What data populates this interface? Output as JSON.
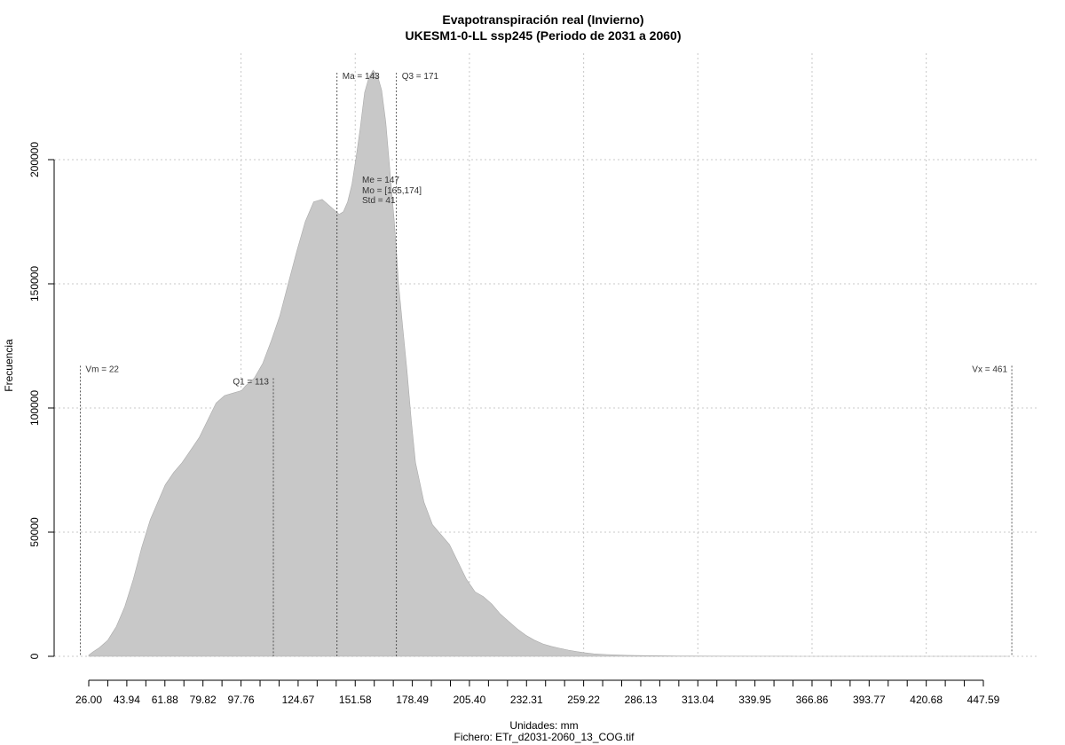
{
  "chart_data": {
    "type": "area",
    "title": "Evapotranspiración real (Invierno)",
    "subtitle": "UKESM1-0-LL ssp245 (Periodo de 2031 a 2060)",
    "xlabel": "Unidades: mm",
    "ylabel": "Frecuencia",
    "footer": "Fichero: ETr_d2031-2060_13_COG.tif",
    "fill_color": "#c8c8c8",
    "grid": true,
    "xlim": [
      20,
      468
    ],
    "ylim": [
      0,
      230000
    ],
    "x_ticks": [
      26.0,
      43.94,
      61.88,
      79.82,
      97.76,
      124.67,
      151.58,
      178.49,
      205.4,
      232.31,
      259.22,
      286.13,
      313.04,
      339.95,
      366.86,
      393.77,
      420.68,
      447.59
    ],
    "x_tick_labels": [
      "26.00",
      "43.94",
      "61.88",
      "79.82",
      "97.76",
      "124.67",
      "151.58",
      "178.49",
      "205.40",
      "232.31",
      "259.22",
      "286.13",
      "313.04",
      "339.95",
      "366.86",
      "393.77",
      "420.68",
      "447.59"
    ],
    "x_minor_ticks": [
      26.0,
      34.97,
      43.94,
      52.91,
      61.88,
      70.85,
      79.82,
      88.79,
      97.76,
      106.73,
      115.7,
      124.67,
      133.64,
      142.61,
      151.58,
      160.55,
      169.52,
      178.49,
      187.46,
      196.43,
      205.4,
      214.37,
      223.34,
      232.31,
      241.28,
      250.25,
      259.22,
      268.19,
      277.16,
      286.13,
      295.1,
      304.07,
      313.04,
      322.01,
      330.98,
      339.95,
      348.92,
      357.89,
      366.86,
      375.83,
      384.8,
      393.77,
      402.74,
      411.71,
      420.68,
      429.65,
      438.62,
      447.59
    ],
    "y_ticks": [
      0,
      50000,
      100000,
      150000,
      200000
    ],
    "y_tick_labels": [
      "0",
      "50000",
      "100000",
      "150000",
      "200000"
    ],
    "x_grid": [
      97.76,
      151.58,
      205.4,
      259.22,
      313.04,
      366.86,
      420.68
    ],
    "density": {
      "x": [
        26,
        28,
        31,
        35,
        39,
        43,
        47,
        51,
        55,
        59,
        62,
        66,
        70,
        74,
        78,
        82,
        86,
        90,
        94,
        98,
        100,
        104,
        108,
        112,
        116,
        120,
        124,
        128,
        132,
        136,
        140,
        144,
        146,
        148,
        150,
        152,
        154,
        156,
        158,
        160,
        162,
        164,
        166,
        168,
        169,
        170,
        171,
        172,
        174,
        176,
        178,
        180,
        184,
        188,
        192,
        196,
        200,
        204,
        208,
        212,
        216,
        220,
        224,
        228,
        232,
        236,
        240,
        244,
        248,
        252,
        256,
        260,
        264,
        270,
        280,
        290,
        300,
        310,
        320,
        340,
        360,
        380,
        400,
        420,
        440,
        460
      ],
      "y": [
        500,
        1800,
        3500,
        6500,
        12000,
        20000,
        31000,
        44000,
        55000,
        63000,
        69000,
        74000,
        78000,
        83000,
        88000,
        95000,
        102000,
        105000,
        106000,
        107000,
        109000,
        112000,
        118000,
        127000,
        137000,
        150000,
        163000,
        175000,
        183000,
        184000,
        181000,
        178000,
        179000,
        183000,
        190000,
        201000,
        213000,
        227000,
        233000,
        236000,
        234000,
        228000,
        215000,
        195000,
        185000,
        175000,
        163000,
        150000,
        132000,
        115000,
        95000,
        78000,
        62000,
        53000,
        49000,
        45000,
        38000,
        31000,
        26000,
        24000,
        21000,
        17000,
        14000,
        11000,
        8500,
        6500,
        5000,
        4000,
        3200,
        2500,
        1900,
        1400,
        1000,
        700,
        400,
        250,
        150,
        100,
        60,
        30,
        15,
        8,
        4,
        2,
        1,
        0
      ]
    },
    "stat_lines": [
      {
        "label": "Vm = 22",
        "value": 22,
        "y_top": 117000,
        "label_side": "right"
      },
      {
        "label": "Q1 = 113",
        "value": 113,
        "y_top": 112000,
        "label_side": "left"
      },
      {
        "label": "Ma = 143",
        "value": 143,
        "y_top": 235000,
        "label_side": "right"
      },
      {
        "label": "Q3 = 171",
        "value": 171,
        "y_top": 235000,
        "label_side": "right"
      },
      {
        "label": "Vx = 461",
        "value": 461,
        "y_top": 117000,
        "label_side": "left"
      }
    ],
    "stats_block": [
      "Me = 147",
      "Mo = [165,174]",
      "Std = 41"
    ]
  }
}
